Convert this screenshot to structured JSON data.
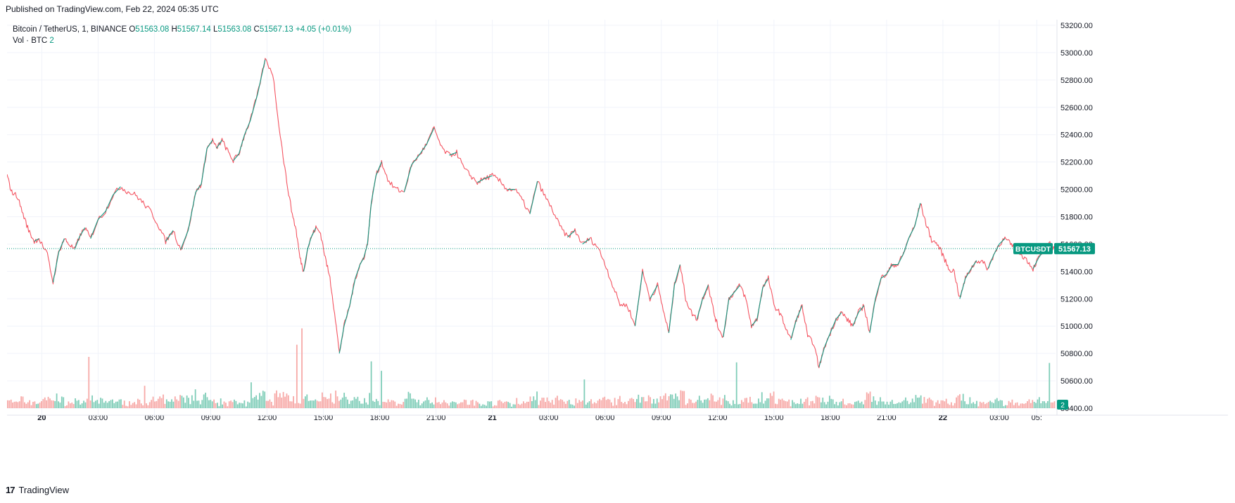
{
  "published": "Published on TradingView.com, Feb 22, 2024 05:35 UTC",
  "footer": {
    "logo": "17",
    "brand": "TradingView"
  },
  "legend": {
    "symbol": "Bitcoin / TetherUS, 1, BINANCE",
    "open_label": "O",
    "open": "51563.08",
    "high_label": "H",
    "high": "51567.14",
    "low_label": "L",
    "low": "51563.08",
    "close_label": "C",
    "close": "51567.13",
    "change": "+4.05 (+0.01%)",
    "vol_label": "Vol · BTC",
    "vol_value": "2"
  },
  "chart_data": {
    "type": "line",
    "title": "Bitcoin / TetherUS, 1, BINANCE",
    "timeframe": "1 minute",
    "ylim": [
      50400,
      53200
    ],
    "y_ticks": [
      "53200.00",
      "53000.00",
      "52800.00",
      "52600.00",
      "52400.00",
      "52200.00",
      "52000.00",
      "51800.00",
      "51600.00",
      "51400.00",
      "51200.00",
      "51000.00",
      "50800.00",
      "50600.00",
      "50400.00"
    ],
    "x_ticks": [
      "20",
      "03:00",
      "06:00",
      "09:00",
      "12:00",
      "15:00",
      "18:00",
      "21:00",
      "21",
      "03:00",
      "06:00",
      "09:00",
      "12:00",
      "15:00",
      "18:00",
      "21:00",
      "22",
      "03:00",
      "05:"
    ],
    "x_tick_hours": [
      0,
      3,
      6,
      9,
      12,
      15,
      18,
      21,
      24,
      27,
      30,
      33,
      36,
      39,
      42,
      45,
      48,
      51,
      53
    ],
    "x_range_hours": [
      -1.85,
      54.0
    ],
    "price_series": {
      "name": "BTCUSDT",
      "hours": [
        -1.85,
        -1.6,
        -1.3,
        -1.0,
        -0.7,
        -0.4,
        -0.15,
        0.3,
        0.6,
        0.9,
        1.2,
        1.45,
        1.75,
        2.0,
        2.3,
        2.6,
        3.0,
        3.4,
        3.8,
        4.2,
        4.6,
        5.0,
        5.4,
        5.8,
        6.2,
        6.6,
        7.0,
        7.4,
        7.8,
        8.2,
        8.5,
        8.8,
        9.1,
        9.3,
        9.6,
        9.9,
        10.2,
        10.5,
        10.8,
        11.1,
        11.5,
        11.9,
        12.3,
        12.7,
        13.0,
        13.3,
        13.55,
        13.75,
        13.95,
        14.15,
        14.35,
        14.6,
        14.85,
        15.1,
        15.35,
        15.6,
        15.85,
        16.1,
        16.4,
        16.7,
        16.95,
        17.15,
        17.35,
        17.55,
        17.8,
        18.1,
        18.5,
        18.9,
        19.3,
        19.7,
        20.1,
        20.5,
        20.9,
        21.3,
        21.7,
        22.1,
        22.5,
        22.85,
        23.2,
        23.6,
        24.0,
        24.4,
        24.8,
        25.2,
        25.6,
        26.0,
        26.4,
        26.8,
        27.2,
        27.6,
        28.0,
        28.4,
        28.8,
        29.2,
        29.6,
        30.0,
        30.4,
        30.8,
        31.2,
        31.6,
        32.0,
        32.4,
        32.8,
        33.1,
        33.4,
        33.7,
        34.0,
        34.3,
        34.6,
        34.9,
        35.2,
        35.5,
        35.8,
        36.0,
        36.3,
        36.6,
        36.9,
        37.2,
        37.5,
        37.8,
        38.1,
        38.4,
        38.7,
        39.0,
        39.3,
        39.6,
        39.9,
        40.2,
        40.5,
        40.8,
        41.1,
        41.4,
        41.7,
        42.0,
        42.3,
        42.6,
        42.9,
        43.2,
        43.5,
        43.8,
        44.1,
        44.4,
        44.7,
        45.0,
        45.3,
        45.6,
        45.9,
        46.2,
        46.5,
        46.8,
        47.1,
        47.4,
        47.7,
        48.0,
        48.3,
        48.6,
        48.9,
        49.2,
        49.5,
        49.8,
        50.1,
        50.4,
        50.7,
        51.0,
        51.3,
        51.6,
        51.9,
        52.2,
        52.5,
        52.8,
        53.1,
        53.4,
        53.7,
        53.93
      ],
      "prices": [
        52100,
        51980,
        51950,
        51820,
        51700,
        51620,
        51640,
        51520,
        51320,
        51540,
        51640,
        51600,
        51560,
        51650,
        51720,
        51640,
        51780,
        51840,
        51960,
        52020,
        51980,
        51960,
        51900,
        51840,
        51740,
        51620,
        51700,
        51560,
        51700,
        51980,
        52040,
        52300,
        52360,
        52300,
        52360,
        52280,
        52210,
        52260,
        52400,
        52500,
        52700,
        52950,
        52850,
        52400,
        52100,
        51850,
        51700,
        51500,
        51400,
        51560,
        51650,
        51720,
        51680,
        51500,
        51350,
        51100,
        50800,
        51000,
        51150,
        51350,
        51450,
        51500,
        51600,
        51900,
        52100,
        52200,
        52050,
        52000,
        51980,
        52180,
        52250,
        52330,
        52450,
        52300,
        52250,
        52270,
        52150,
        52100,
        52050,
        52080,
        52100,
        52060,
        52000,
        52000,
        51920,
        51820,
        52060,
        51950,
        51850,
        51730,
        51650,
        51700,
        51600,
        51640,
        51580,
        51460,
        51300,
        51160,
        51150,
        51000,
        51400,
        51200,
        51300,
        51120,
        50950,
        51300,
        51450,
        51200,
        51100,
        51050,
        51200,
        51300,
        51100,
        51000,
        50920,
        51200,
        51250,
        51300,
        51200,
        51000,
        51050,
        51280,
        51350,
        51150,
        51100,
        51000,
        50900,
        51050,
        51150,
        50920,
        50880,
        50700,
        50850,
        50950,
        51050,
        51100,
        51050,
        51000,
        51100,
        51150,
        50950,
        51200,
        51350,
        51380,
        51450,
        51450,
        51530,
        51650,
        51730,
        51900,
        51750,
        51630,
        51600,
        51520,
        51420,
        51400,
        51200,
        51350,
        51420,
        51480,
        51470,
        51420,
        51520,
        51600,
        51640,
        51600,
        51560,
        51520,
        51480,
        51420,
        51500,
        51560,
        51600,
        51567.13
      ]
    },
    "volume_series": {
      "name": "Vol · BTC",
      "last": "2"
    },
    "last_price": {
      "symbol": "BTCUSDT",
      "value": "51567.13",
      "price": 51567.13,
      "volume_badge": "2"
    },
    "colors": {
      "up": "#089981",
      "down": "#F23645",
      "grid": "#F0F3FA",
      "axis_text": "#131722",
      "price_line": "#089981",
      "volume_up": "#7FCDB8",
      "volume_down": "#F7A9A7"
    },
    "grid": true
  }
}
